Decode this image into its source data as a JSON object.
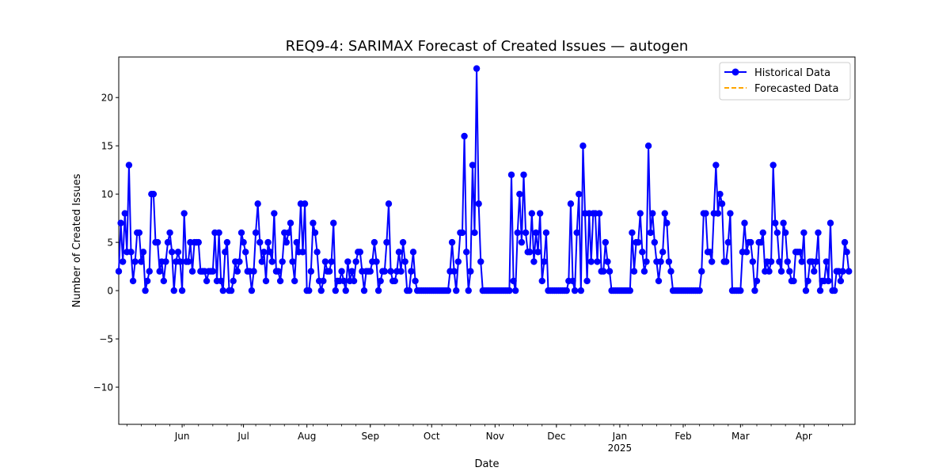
{
  "chart_data": {
    "type": "line",
    "title": "REQ9-4: SARIMAX Forecast of Created Issues — autogen",
    "xlabel": "Date",
    "ylabel": "Number of Created Issues",
    "ylim": [
      -13.85,
      24.2
    ],
    "xlim": [
      "2024-05-01",
      "2025-04-26"
    ],
    "grid": false,
    "legend_position": "top-right",
    "x_ticks": [
      {
        "date": "2024-06-01",
        "label": "Jun",
        "sublabel": ""
      },
      {
        "date": "2024-07-01",
        "label": "Jul",
        "sublabel": ""
      },
      {
        "date": "2024-08-01",
        "label": "Aug",
        "sublabel": ""
      },
      {
        "date": "2024-09-01",
        "label": "Sep",
        "sublabel": ""
      },
      {
        "date": "2024-10-01",
        "label": "Oct",
        "sublabel": ""
      },
      {
        "date": "2024-11-01",
        "label": "Nov",
        "sublabel": ""
      },
      {
        "date": "2024-12-01",
        "label": "Dec",
        "sublabel": ""
      },
      {
        "date": "2025-01-01",
        "label": "Jan",
        "sublabel": "2025"
      },
      {
        "date": "2025-02-01",
        "label": "Feb",
        "sublabel": ""
      },
      {
        "date": "2025-03-01",
        "label": "Mar",
        "sublabel": ""
      },
      {
        "date": "2025-04-01",
        "label": "Apr",
        "sublabel": ""
      }
    ],
    "y_ticks": [
      -10,
      -5,
      0,
      5,
      10,
      15,
      20
    ],
    "series": [
      {
        "name": "Historical Data",
        "color": "#0000ff",
        "style": "solid",
        "marker": "circle",
        "start_date": "2024-05-01",
        "values": [
          2,
          7,
          3,
          8,
          4,
          13,
          4,
          1,
          3,
          6,
          6,
          3,
          4,
          0,
          1,
          2,
          10,
          10,
          5,
          5,
          2,
          3,
          1,
          3,
          5,
          6,
          4,
          0,
          3,
          4,
          3,
          0,
          8,
          3,
          3,
          5,
          2,
          5,
          5,
          5,
          2,
          2,
          2,
          1,
          2,
          2,
          2,
          6,
          1,
          6,
          1,
          0,
          4,
          5,
          0,
          0,
          1,
          3,
          2,
          3,
          6,
          5,
          4,
          2,
          2,
          0,
          2,
          6,
          9,
          5,
          3,
          4,
          1,
          5,
          4,
          3,
          8,
          2,
          2,
          1,
          3,
          6,
          5,
          6,
          7,
          3,
          1,
          5,
          4,
          9,
          4,
          9,
          0,
          0,
          2,
          7,
          6,
          4,
          1,
          0,
          1,
          3,
          2,
          2,
          3,
          7,
          0,
          1,
          1,
          2,
          1,
          0,
          3,
          1,
          2,
          1,
          3,
          4,
          4,
          2,
          0,
          2,
          2,
          2,
          3,
          5,
          3,
          0,
          1,
          2,
          2,
          5,
          9,
          2,
          1,
          1,
          2,
          4,
          2,
          5,
          3,
          0,
          0,
          2,
          4,
          1,
          0,
          0,
          0,
          0,
          0,
          0,
          0,
          0,
          0,
          0,
          0,
          0,
          0,
          0,
          0,
          0,
          2,
          5,
          2,
          0,
          3,
          6,
          6,
          16,
          4,
          0,
          2,
          13,
          6,
          23,
          9,
          3,
          0,
          0,
          0,
          0,
          0,
          0,
          0,
          0,
          0,
          0,
          0,
          0,
          0,
          0,
          12,
          1,
          0,
          6,
          10,
          5,
          12,
          6,
          4,
          4,
          8,
          3,
          6,
          4,
          8,
          1,
          3,
          6,
          0,
          0,
          0,
          0,
          0,
          0,
          0,
          0,
          0,
          0,
          1,
          9,
          1,
          0,
          6,
          10,
          0,
          15,
          8,
          1,
          8,
          3,
          8,
          8,
          3,
          8,
          2,
          2,
          5,
          3,
          2,
          0,
          0,
          0,
          0,
          0,
          0,
          0,
          0,
          0,
          0,
          6,
          2,
          5,
          5,
          8,
          4,
          2,
          3,
          15,
          6,
          8,
          5,
          3,
          1,
          3,
          4,
          8,
          7,
          3,
          2,
          0,
          0,
          0,
          0,
          0,
          0,
          0,
          0,
          0,
          0,
          0,
          0,
          0,
          0,
          2,
          8,
          8,
          4,
          4,
          3,
          8,
          13,
          8,
          10,
          9,
          3,
          3,
          5,
          8,
          0,
          0,
          0,
          0,
          0,
          4,
          7,
          4,
          5,
          5,
          3,
          0,
          1,
          5,
          5,
          6,
          2,
          3,
          2,
          3,
          13,
          7,
          6,
          3,
          2,
          7,
          6,
          3,
          2,
          1,
          1,
          4,
          4,
          4,
          3,
          6,
          0,
          1,
          3,
          3,
          2,
          3,
          6,
          0,
          1,
          1,
          3,
          1,
          7,
          0,
          0,
          2,
          2,
          1,
          2,
          5,
          4,
          2
        ]
      },
      {
        "name": "Forecasted Data",
        "color": "#ffa500",
        "style": "dashed",
        "marker": "none",
        "values": []
      }
    ]
  }
}
